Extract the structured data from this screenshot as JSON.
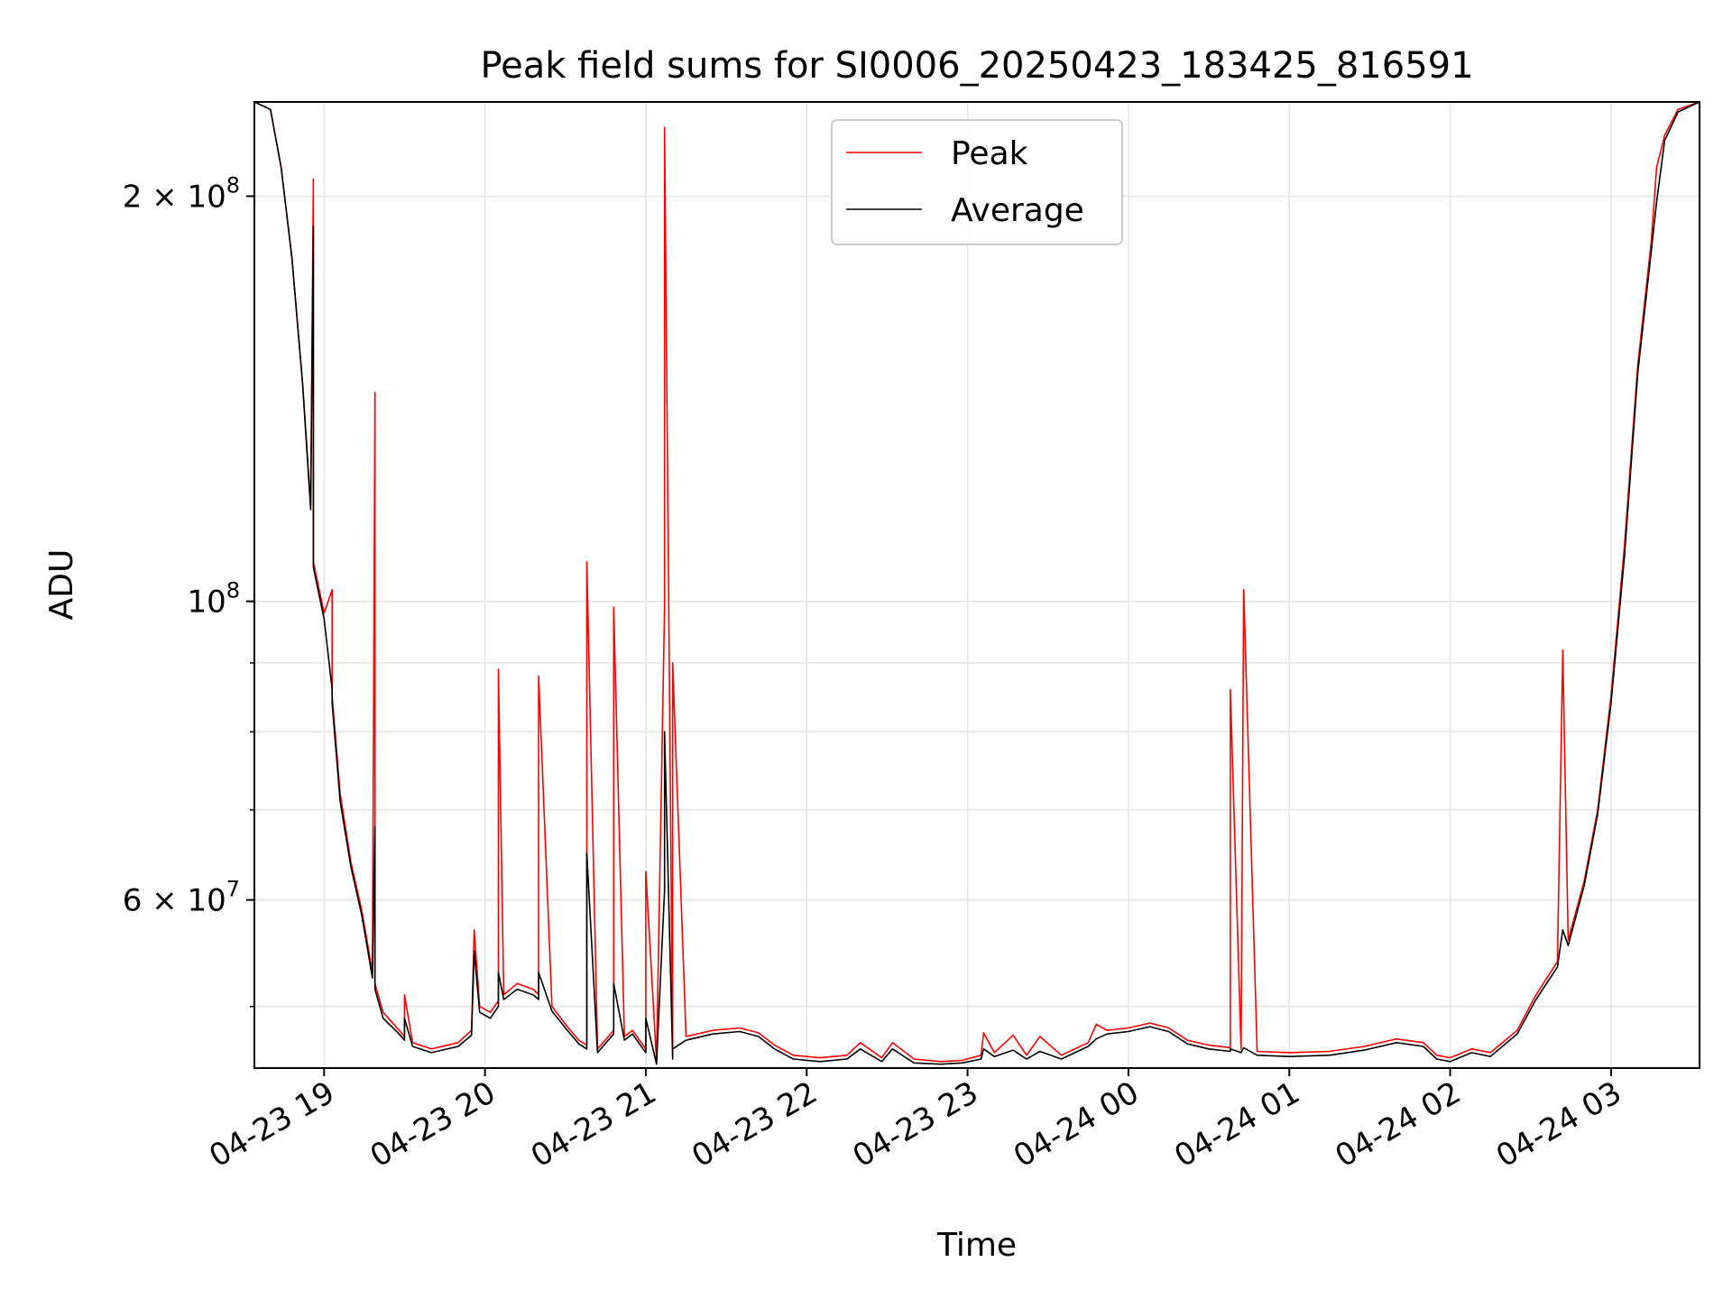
{
  "chart_data": {
    "type": "line",
    "title": "Peak field sums for SI0006_20250423_183425_816591",
    "xlabel": "Time",
    "ylabel": "ADU",
    "y_scale": "log",
    "ylim": [
      45000000,
      235000000
    ],
    "xlim": [
      "2025-04-23 18:34",
      "2025-04-24 03:33"
    ],
    "grid": true,
    "legend_position": "upper center",
    "x_ticks": [
      {
        "t": "2025-04-23 19:00",
        "label": "04-23 19"
      },
      {
        "t": "2025-04-23 20:00",
        "label": "04-23 20"
      },
      {
        "t": "2025-04-23 21:00",
        "label": "04-23 21"
      },
      {
        "t": "2025-04-23 22:00",
        "label": "04-23 22"
      },
      {
        "t": "2025-04-23 23:00",
        "label": "04-23 23"
      },
      {
        "t": "2025-04-24 00:00",
        "label": "04-24 00"
      },
      {
        "t": "2025-04-24 01:00",
        "label": "04-24 01"
      },
      {
        "t": "2025-04-24 02:00",
        "label": "04-24 02"
      },
      {
        "t": "2025-04-24 03:00",
        "label": "04-24 03"
      }
    ],
    "y_major_ticks": [
      {
        "value": 60000000,
        "label_base": "6 × 10",
        "label_exp": "7"
      },
      {
        "value": 100000000,
        "label_base": "10",
        "label_exp": "8"
      },
      {
        "value": 200000000,
        "label_base": "2 × 10",
        "label_exp": "8"
      }
    ],
    "y_minor_gridlines": [
      50000000,
      70000000,
      80000000,
      90000000
    ],
    "series": [
      {
        "name": "Peak",
        "color": "#ff0000",
        "points": [
          [
            "2025-04-23 18:34",
            235000000
          ],
          [
            "2025-04-23 18:40",
            232000000
          ],
          [
            "2025-04-23 18:44",
            210000000
          ],
          [
            "2025-04-23 18:48",
            180000000
          ],
          [
            "2025-04-23 18:52",
            145000000
          ],
          [
            "2025-04-23 18:55",
            118000000
          ],
          [
            "2025-04-23 18:56",
            206000000
          ],
          [
            "2025-04-23 18:56",
            107000000
          ],
          [
            "2025-04-23 19:00",
            98000000
          ],
          [
            "2025-04-23 19:03",
            102000000
          ],
          [
            "2025-04-23 19:03",
            85000000
          ],
          [
            "2025-04-23 19:06",
            72000000
          ],
          [
            "2025-04-23 19:10",
            64000000
          ],
          [
            "2025-04-23 19:14",
            59000000
          ],
          [
            "2025-04-23 19:16",
            56000000
          ],
          [
            "2025-04-23 19:18",
            53000000
          ],
          [
            "2025-04-23 19:19",
            143000000
          ],
          [
            "2025-04-23 19:19",
            52000000
          ],
          [
            "2025-04-23 19:22",
            49500000
          ],
          [
            "2025-04-23 19:28",
            48000000
          ],
          [
            "2025-04-23 19:30",
            47500000
          ],
          [
            "2025-04-23 19:30",
            51000000
          ],
          [
            "2025-04-23 19:33",
            47000000
          ],
          [
            "2025-04-23 19:40",
            46500000
          ],
          [
            "2025-04-23 19:50",
            47000000
          ],
          [
            "2025-04-23 19:55",
            48000000
          ],
          [
            "2025-04-23 19:56",
            57000000
          ],
          [
            "2025-04-23 19:58",
            50000000
          ],
          [
            "2025-04-23 20:02",
            49500000
          ],
          [
            "2025-04-23 20:05",
            50500000
          ],
          [
            "2025-04-23 20:05",
            89000000
          ],
          [
            "2025-04-23 20:07",
            51000000
          ],
          [
            "2025-04-23 20:12",
            52000000
          ],
          [
            "2025-04-23 20:18",
            51500000
          ],
          [
            "2025-04-23 20:20",
            51000000
          ],
          [
            "2025-04-23 20:20",
            88000000
          ],
          [
            "2025-04-23 20:25",
            50000000
          ],
          [
            "2025-04-23 20:30",
            48500000
          ],
          [
            "2025-04-23 20:35",
            47200000
          ],
          [
            "2025-04-23 20:38",
            46800000
          ],
          [
            "2025-04-23 20:38",
            107000000
          ],
          [
            "2025-04-23 20:42",
            46500000
          ],
          [
            "2025-04-23 20:48",
            48000000
          ],
          [
            "2025-04-23 20:48",
            99000000
          ],
          [
            "2025-04-23 20:52",
            47500000
          ],
          [
            "2025-04-23 20:55",
            48000000
          ],
          [
            "2025-04-23 21:00",
            46500000
          ],
          [
            "2025-04-23 21:00",
            63000000
          ],
          [
            "2025-04-23 21:04",
            45500000
          ],
          [
            "2025-04-23 21:07",
            99000000
          ],
          [
            "2025-04-23 21:07",
            225000000
          ],
          [
            "2025-04-23 21:10",
            46000000
          ],
          [
            "2025-04-23 21:10",
            90000000
          ],
          [
            "2025-04-23 21:15",
            47500000
          ],
          [
            "2025-04-23 21:25",
            48000000
          ],
          [
            "2025-04-23 21:35",
            48200000
          ],
          [
            "2025-04-23 21:42",
            47800000
          ],
          [
            "2025-04-23 21:48",
            46800000
          ],
          [
            "2025-04-23 21:55",
            46000000
          ],
          [
            "2025-04-23 22:05",
            45800000
          ],
          [
            "2025-04-23 22:15",
            46000000
          ],
          [
            "2025-04-23 22:20",
            47000000
          ],
          [
            "2025-04-23 22:28",
            45800000
          ],
          [
            "2025-04-23 22:32",
            47000000
          ],
          [
            "2025-04-23 22:40",
            45700000
          ],
          [
            "2025-04-23 22:50",
            45500000
          ],
          [
            "2025-04-23 22:58",
            45600000
          ],
          [
            "2025-04-23 23:05",
            46000000
          ],
          [
            "2025-04-23 23:06",
            47800000
          ],
          [
            "2025-04-23 23:10",
            46200000
          ],
          [
            "2025-04-23 23:17",
            47600000
          ],
          [
            "2025-04-23 23:22",
            46000000
          ],
          [
            "2025-04-23 23:27",
            47500000
          ],
          [
            "2025-04-23 23:35",
            46000000
          ],
          [
            "2025-04-23 23:45",
            47000000
          ],
          [
            "2025-04-23 23:48",
            48500000
          ],
          [
            "2025-04-23 23:52",
            48000000
          ],
          [
            "2025-04-24 00:00",
            48200000
          ],
          [
            "2025-04-24 00:08",
            48600000
          ],
          [
            "2025-04-24 00:15",
            48200000
          ],
          [
            "2025-04-24 00:22",
            47200000
          ],
          [
            "2025-04-24 00:30",
            46800000
          ],
          [
            "2025-04-24 00:38",
            46600000
          ],
          [
            "2025-04-24 00:38",
            86000000
          ],
          [
            "2025-04-24 00:42",
            46500000
          ],
          [
            "2025-04-24 00:43",
            102000000
          ],
          [
            "2025-04-24 00:48",
            46300000
          ],
          [
            "2025-04-24 01:00",
            46200000
          ],
          [
            "2025-04-24 01:15",
            46300000
          ],
          [
            "2025-04-24 01:28",
            46700000
          ],
          [
            "2025-04-24 01:40",
            47300000
          ],
          [
            "2025-04-24 01:50",
            47000000
          ],
          [
            "2025-04-24 01:55",
            46000000
          ],
          [
            "2025-04-24 02:00",
            45800000
          ],
          [
            "2025-04-24 02:08",
            46500000
          ],
          [
            "2025-04-24 02:15",
            46200000
          ],
          [
            "2025-04-24 02:25",
            48000000
          ],
          [
            "2025-04-24 02:32",
            51000000
          ],
          [
            "2025-04-24 02:40",
            54000000
          ],
          [
            "2025-04-24 02:42",
            92000000
          ],
          [
            "2025-04-24 02:44",
            56000000
          ],
          [
            "2025-04-24 02:50",
            62000000
          ],
          [
            "2025-04-24 02:55",
            70000000
          ],
          [
            "2025-04-24 03:00",
            85000000
          ],
          [
            "2025-04-24 03:05",
            110000000
          ],
          [
            "2025-04-24 03:10",
            150000000
          ],
          [
            "2025-04-24 03:15",
            185000000
          ],
          [
            "2025-04-24 03:17",
            210000000
          ],
          [
            "2025-04-24 03:20",
            222000000
          ],
          [
            "2025-04-24 03:25",
            232000000
          ],
          [
            "2025-04-24 03:33",
            235000000
          ]
        ]
      },
      {
        "name": "Average",
        "color": "#000000",
        "points": [
          [
            "2025-04-23 18:34",
            235000000
          ],
          [
            "2025-04-23 18:40",
            232000000
          ],
          [
            "2025-04-23 18:44",
            210000000
          ],
          [
            "2025-04-23 18:48",
            180000000
          ],
          [
            "2025-04-23 18:52",
            145000000
          ],
          [
            "2025-04-23 18:55",
            117000000
          ],
          [
            "2025-04-23 18:56",
            190000000
          ],
          [
            "2025-04-23 18:56",
            106000000
          ],
          [
            "2025-04-23 19:00",
            97000000
          ],
          [
            "2025-04-23 19:03",
            86000000
          ],
          [
            "2025-04-23 19:03",
            84000000
          ],
          [
            "2025-04-23 19:06",
            71000000
          ],
          [
            "2025-04-23 19:10",
            63500000
          ],
          [
            "2025-04-23 19:14",
            58500000
          ],
          [
            "2025-04-23 19:16",
            55500000
          ],
          [
            "2025-04-23 19:18",
            52500000
          ],
          [
            "2025-04-23 19:19",
            68000000
          ],
          [
            "2025-04-23 19:19",
            51500000
          ],
          [
            "2025-04-23 19:22",
            49000000
          ],
          [
            "2025-04-23 19:28",
            47700000
          ],
          [
            "2025-04-23 19:30",
            47200000
          ],
          [
            "2025-04-23 19:30",
            49000000
          ],
          [
            "2025-04-23 19:33",
            46700000
          ],
          [
            "2025-04-23 19:40",
            46200000
          ],
          [
            "2025-04-23 19:50",
            46700000
          ],
          [
            "2025-04-23 19:55",
            47600000
          ],
          [
            "2025-04-23 19:56",
            55000000
          ],
          [
            "2025-04-23 19:58",
            49500000
          ],
          [
            "2025-04-23 20:02",
            49000000
          ],
          [
            "2025-04-23 20:05",
            50000000
          ],
          [
            "2025-04-23 20:05",
            53000000
          ],
          [
            "2025-04-23 20:07",
            50600000
          ],
          [
            "2025-04-23 20:12",
            51500000
          ],
          [
            "2025-04-23 20:18",
            51000000
          ],
          [
            "2025-04-23 20:20",
            50600000
          ],
          [
            "2025-04-23 20:20",
            53000000
          ],
          [
            "2025-04-23 20:25",
            49600000
          ],
          [
            "2025-04-23 20:30",
            48200000
          ],
          [
            "2025-04-23 20:35",
            46900000
          ],
          [
            "2025-04-23 20:38",
            46500000
          ],
          [
            "2025-04-23 20:38",
            65000000
          ],
          [
            "2025-04-23 20:42",
            46200000
          ],
          [
            "2025-04-23 20:48",
            47700000
          ],
          [
            "2025-04-23 20:48",
            52000000
          ],
          [
            "2025-04-23 20:52",
            47200000
          ],
          [
            "2025-04-23 20:55",
            47700000
          ],
          [
            "2025-04-23 21:00",
            46200000
          ],
          [
            "2025-04-23 21:00",
            49000000
          ],
          [
            "2025-04-23 21:04",
            45300000
          ],
          [
            "2025-04-23 21:07",
            61000000
          ],
          [
            "2025-04-23 21:07",
            80000000
          ],
          [
            "2025-04-23 21:10",
            45700000
          ],
          [
            "2025-04-23 21:10",
            46500000
          ],
          [
            "2025-04-23 21:15",
            47200000
          ],
          [
            "2025-04-23 21:25",
            47700000
          ],
          [
            "2025-04-23 21:35",
            47900000
          ],
          [
            "2025-04-23 21:42",
            47500000
          ],
          [
            "2025-04-23 21:48",
            46500000
          ],
          [
            "2025-04-23 21:55",
            45700000
          ],
          [
            "2025-04-23 22:05",
            45500000
          ],
          [
            "2025-04-23 22:15",
            45700000
          ],
          [
            "2025-04-23 22:20",
            46500000
          ],
          [
            "2025-04-23 22:28",
            45500000
          ],
          [
            "2025-04-23 22:32",
            46500000
          ],
          [
            "2025-04-23 22:40",
            45400000
          ],
          [
            "2025-04-23 22:50",
            45300000
          ],
          [
            "2025-04-23 22:58",
            45400000
          ],
          [
            "2025-04-23 23:05",
            45700000
          ],
          [
            "2025-04-23 23:06",
            46500000
          ],
          [
            "2025-04-23 23:10",
            45900000
          ],
          [
            "2025-04-23 23:17",
            46400000
          ],
          [
            "2025-04-23 23:22",
            45700000
          ],
          [
            "2025-04-23 23:27",
            46300000
          ],
          [
            "2025-04-23 23:35",
            45700000
          ],
          [
            "2025-04-23 23:45",
            46700000
          ],
          [
            "2025-04-23 23:48",
            47300000
          ],
          [
            "2025-04-23 23:52",
            47700000
          ],
          [
            "2025-04-24 00:00",
            47900000
          ],
          [
            "2025-04-24 00:08",
            48300000
          ],
          [
            "2025-04-24 00:15",
            47900000
          ],
          [
            "2025-04-24 00:22",
            46900000
          ],
          [
            "2025-04-24 00:30",
            46500000
          ],
          [
            "2025-04-24 00:38",
            46300000
          ],
          [
            "2025-04-24 00:38",
            46500000
          ],
          [
            "2025-04-24 00:42",
            46200000
          ],
          [
            "2025-04-24 00:43",
            46600000
          ],
          [
            "2025-04-24 00:48",
            46000000
          ],
          [
            "2025-04-24 01:00",
            45900000
          ],
          [
            "2025-04-24 01:15",
            46000000
          ],
          [
            "2025-04-24 01:28",
            46400000
          ],
          [
            "2025-04-24 01:40",
            47000000
          ],
          [
            "2025-04-24 01:50",
            46700000
          ],
          [
            "2025-04-24 01:55",
            45700000
          ],
          [
            "2025-04-24 02:00",
            45500000
          ],
          [
            "2025-04-24 02:08",
            46200000
          ],
          [
            "2025-04-24 02:15",
            45900000
          ],
          [
            "2025-04-24 02:25",
            47700000
          ],
          [
            "2025-04-24 02:32",
            50600000
          ],
          [
            "2025-04-24 02:40",
            53500000
          ],
          [
            "2025-04-24 02:42",
            57000000
          ],
          [
            "2025-04-24 02:44",
            55500000
          ],
          [
            "2025-04-24 02:50",
            61500000
          ],
          [
            "2025-04-24 02:55",
            69500000
          ],
          [
            "2025-04-24 03:00",
            84000000
          ],
          [
            "2025-04-24 03:05",
            108000000
          ],
          [
            "2025-04-24 03:10",
            148000000
          ],
          [
            "2025-04-24 03:15",
            182000000
          ],
          [
            "2025-04-24 03:17",
            198000000
          ],
          [
            "2025-04-24 03:20",
            220000000
          ],
          [
            "2025-04-24 03:25",
            231000000
          ],
          [
            "2025-04-24 03:33",
            235000000
          ]
        ]
      }
    ]
  }
}
